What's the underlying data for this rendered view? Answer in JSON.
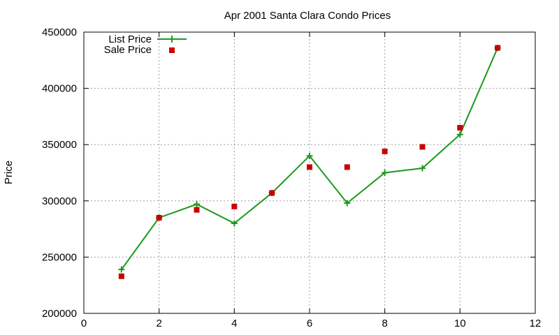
{
  "chart_data": {
    "type": "line",
    "title": "Apr 2001 Santa Clara Condo Prices",
    "xlabel": "",
    "ylabel": "Price",
    "xlim": [
      0,
      12
    ],
    "ylim": [
      200000,
      450000
    ],
    "xticks": [
      0,
      2,
      4,
      6,
      8,
      10,
      12
    ],
    "yticks": [
      200000,
      250000,
      300000,
      350000,
      400000,
      450000
    ],
    "grid": true,
    "legend_position": "top-left",
    "series": [
      {
        "name": "List Price",
        "style": "line-with-plus-markers",
        "color": "#1a9a1a",
        "x": [
          1,
          2,
          3,
          4,
          5,
          6,
          7,
          8,
          9,
          10,
          11
        ],
        "y": [
          239000,
          285000,
          297000,
          280000,
          307000,
          340000,
          298000,
          325000,
          329000,
          359000,
          436000
        ]
      },
      {
        "name": "Sale Price",
        "style": "square-markers",
        "color": "#cc0000",
        "x": [
          1,
          2,
          3,
          4,
          5,
          6,
          7,
          8,
          9,
          10,
          11
        ],
        "y": [
          233000,
          285000,
          292000,
          295000,
          307000,
          330000,
          330000,
          344000,
          348000,
          365000,
          436000
        ]
      }
    ]
  }
}
